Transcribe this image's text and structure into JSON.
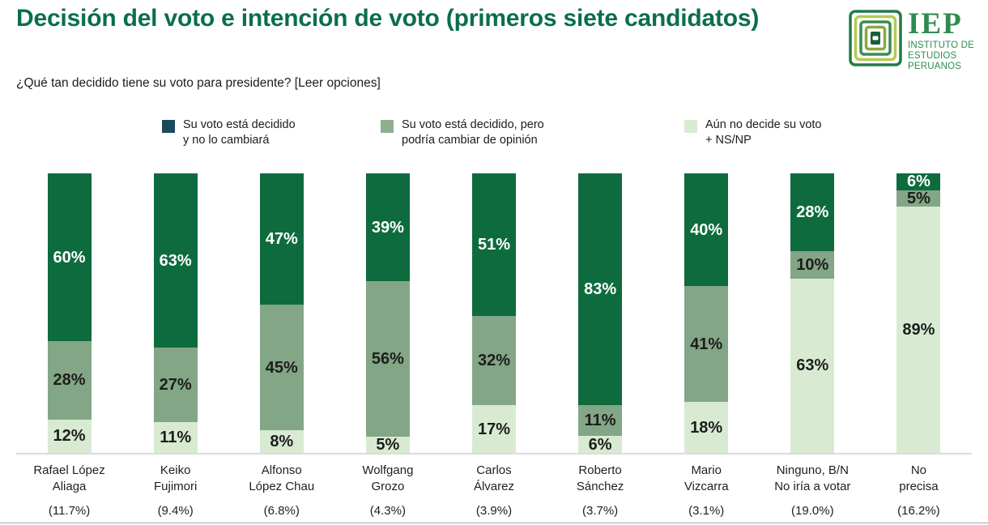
{
  "header": {
    "title": "Decisión del voto e intención de voto (primeros siete candidatos)",
    "subtitle": "¿Qué tan decidido tiene su voto para presidente? [Leer opciones]"
  },
  "logo": {
    "acronym": "IEP",
    "name_lines": [
      "INSTITUTO DE",
      "ESTUDIOS",
      "PERUANOS"
    ],
    "color": "#2e8b4f"
  },
  "legend": {
    "items": [
      {
        "line1": "Su voto está decidido",
        "line2": "y no lo cambiará",
        "color": "#1b4a5c"
      },
      {
        "line1": "Su voto está decidido, pero",
        "line2": "podría cambiar de opinión",
        "color": "#8eb08e"
      },
      {
        "line1": "Aún no decide su voto",
        "line2": "+ NS/NP",
        "color": "#d8ebd2"
      }
    ]
  },
  "chart_data": {
    "type": "bar",
    "stacked": true,
    "orientation": "vertical",
    "title": "Decisión del voto e intención de voto (primeros siete candidatos)",
    "question": "¿Qué tan decidido tiene su voto para presidente? [Leer opciones]",
    "ylim": [
      0,
      100
    ],
    "value_suffix": "%",
    "grid": false,
    "legend_position": "top",
    "categories": [
      "Rafael López Aliaga",
      "Keiko Fujimori",
      "Alfonso López Chau",
      "Wolfgang Grozo",
      "Carlos Álvarez",
      "Roberto Sánchez",
      "Mario Vizcarra",
      "Ninguno, B/N No iría a votar",
      "No precisa"
    ],
    "category_label_lines": [
      [
        "Rafael López",
        "Aliaga"
      ],
      [
        "Keiko",
        "Fujimori"
      ],
      [
        "Alfonso",
        "López Chau"
      ],
      [
        "Wolfgang",
        "Grozo"
      ],
      [
        "Carlos",
        "Álvarez"
      ],
      [
        "Roberto",
        "Sánchez"
      ],
      [
        "Mario",
        "Vizcarra"
      ],
      [
        "Ninguno, B/N",
        "No iría a votar"
      ],
      [
        "No",
        "precisa"
      ]
    ],
    "vote_intention_shares": [
      "(11.7%)",
      "(9.4%)",
      "(6.8%)",
      "(4.3%)",
      "(3.9%)",
      "(3.7%)",
      "(3.1%)",
      "(19.0%)",
      "(16.2%)"
    ],
    "series": [
      {
        "name": "Su voto está decidido y no lo cambiará",
        "color": "#0e6b3e",
        "label_color": "#ffffff",
        "values": [
          60,
          63,
          47,
          39,
          51,
          83,
          40,
          28,
          6
        ]
      },
      {
        "name": "Su voto está decidido, pero podría cambiar de opinión",
        "color": "#83a686",
        "label_color": "#1d1d1d",
        "values": [
          28,
          27,
          45,
          56,
          32,
          11,
          41,
          10,
          5
        ]
      },
      {
        "name": "Aún no decide su voto + NS/NP",
        "color": "#d8ebd2",
        "label_color": "#1d1d1d",
        "values": [
          12,
          11,
          8,
          5,
          17,
          6,
          18,
          63,
          89
        ]
      }
    ]
  }
}
